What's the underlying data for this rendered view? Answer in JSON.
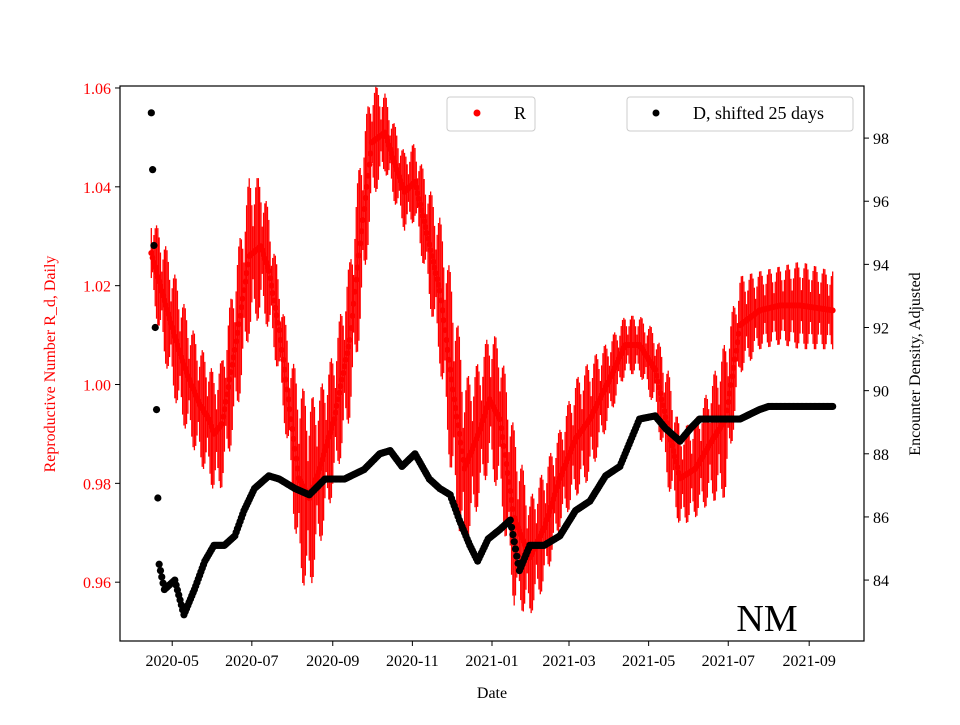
{
  "chart_data": {
    "type": "scatter",
    "title": "",
    "annotation": "NM",
    "xlabel": "Date",
    "ylabel_left": "Reproductive Number R_d, Daily",
    "ylabel_right": "Encounter Density, Adjusted",
    "xlim": [
      "2020-03-22",
      "2021-10-13"
    ],
    "ylim_left": [
      0.9481,
      1.0604
    ],
    "ylim_right": [
      82.07,
      99.65
    ],
    "x_ticks": [
      {
        "date": "2020-05-01",
        "label": "2020-05"
      },
      {
        "date": "2020-07-01",
        "label": "2020-07"
      },
      {
        "date": "2020-09-01",
        "label": "2020-09"
      },
      {
        "date": "2020-11-01",
        "label": "2020-11"
      },
      {
        "date": "2021-01-01",
        "label": "2021-01"
      },
      {
        "date": "2021-03-01",
        "label": "2021-03"
      },
      {
        "date": "2021-05-01",
        "label": "2021-05"
      },
      {
        "date": "2021-07-01",
        "label": "2021-07"
      },
      {
        "date": "2021-09-01",
        "label": "2021-09"
      }
    ],
    "y_ticks_left": [
      {
        "value": 0.96,
        "label": "0.96"
      },
      {
        "value": 0.98,
        "label": "0.98"
      },
      {
        "value": 1.0,
        "label": "1.00"
      },
      {
        "value": 1.02,
        "label": "1.02"
      },
      {
        "value": 1.04,
        "label": "1.04"
      },
      {
        "value": 1.06,
        "label": "1.06"
      }
    ],
    "y_ticks_right": [
      {
        "value": 84,
        "label": "84"
      },
      {
        "value": 86,
        "label": "86"
      },
      {
        "value": 88,
        "label": "88"
      },
      {
        "value": 90,
        "label": "90"
      },
      {
        "value": 92,
        "label": "92"
      },
      {
        "value": 94,
        "label": "94"
      },
      {
        "value": 96,
        "label": "96"
      },
      {
        "value": 98,
        "label": "98"
      }
    ],
    "legend": [
      {
        "label": "R",
        "color": "#ff0000",
        "placement": "top-center"
      },
      {
        "label": "D, shifted 25 days",
        "color": "#000000",
        "placement": "top-right"
      }
    ],
    "colors": {
      "R": "#ff0000",
      "D": "#000000"
    },
    "series": [
      {
        "name": "R",
        "axis": "left",
        "interpolation": "daily",
        "points": [
          [
            "2020-04-15",
            1.0266,
            0.008
          ],
          [
            "2020-04-25",
            1.017,
            0.012
          ],
          [
            "2020-05-06",
            1.007,
            0.013
          ],
          [
            "2020-05-14",
            1.001,
            0.012
          ],
          [
            "2020-05-22",
            0.996,
            0.012
          ],
          [
            "2020-05-29",
            0.993,
            0.012
          ],
          [
            "2020-06-02",
            0.99,
            0.012
          ],
          [
            "2020-06-08",
            0.992,
            0.013
          ],
          [
            "2020-06-18",
            1.007,
            0.016
          ],
          [
            "2020-06-29",
            1.026,
            0.016
          ],
          [
            "2020-07-08",
            1.028,
            0.014
          ],
          [
            "2020-07-14",
            1.023,
            0.012
          ],
          [
            "2020-07-22",
            1.011,
            0.01
          ],
          [
            "2020-07-30",
            0.995,
            0.012
          ],
          [
            "2020-08-06",
            0.981,
            0.02
          ],
          [
            "2020-08-14",
            0.977,
            0.02
          ],
          [
            "2020-08-22",
            0.983,
            0.016
          ],
          [
            "2020-09-02",
            0.993,
            0.014
          ],
          [
            "2020-09-14",
            1.009,
            0.016
          ],
          [
            "2020-09-23",
            1.031,
            0.018
          ],
          [
            "2020-10-01",
            1.049,
            0.012
          ],
          [
            "2020-10-11",
            1.051,
            0.008
          ],
          [
            "2020-10-18",
            1.045,
            0.008
          ],
          [
            "2020-10-26",
            1.039,
            0.008
          ],
          [
            "2020-11-03",
            1.041,
            0.008
          ],
          [
            "2020-11-10",
            1.033,
            0.01
          ],
          [
            "2020-11-22",
            1.019,
            0.015
          ],
          [
            "2020-12-03",
            0.997,
            0.022
          ],
          [
            "2020-12-11",
            0.983,
            0.018
          ],
          [
            "2020-12-23",
            0.991,
            0.014
          ],
          [
            "2020-12-30",
            0.997,
            0.014
          ],
          [
            "2021-01-07",
            0.993,
            0.016
          ],
          [
            "2021-01-18",
            0.973,
            0.018
          ],
          [
            "2021-01-30",
            0.965,
            0.012
          ],
          [
            "2021-02-10",
            0.971,
            0.012
          ],
          [
            "2021-02-22",
            0.981,
            0.01
          ],
          [
            "2021-03-06",
            0.989,
            0.012
          ],
          [
            "2021-03-17",
            0.993,
            0.012
          ],
          [
            "2021-04-01",
            1.001,
            0.008
          ],
          [
            "2021-04-13",
            1.008,
            0.006
          ],
          [
            "2021-04-24",
            1.008,
            0.006
          ],
          [
            "2021-05-06",
            1.003,
            0.008
          ],
          [
            "2021-05-16",
            0.991,
            0.012
          ],
          [
            "2021-05-25",
            0.981,
            0.01
          ],
          [
            "2021-06-06",
            0.983,
            0.01
          ],
          [
            "2021-06-17",
            0.988,
            0.012
          ],
          [
            "2021-06-29",
            0.993,
            0.016
          ],
          [
            "2021-07-10",
            1.012,
            0.01
          ],
          [
            "2021-07-25",
            1.015,
            0.008
          ],
          [
            "2021-08-10",
            1.016,
            0.008
          ],
          [
            "2021-08-25",
            1.016,
            0.009
          ],
          [
            "2021-09-19",
            1.015,
            0.008
          ]
        ]
      },
      {
        "name": "D, shifted 25 days",
        "axis": "right",
        "interpolation": "daily",
        "points": [
          [
            "2020-04-15",
            98.8
          ],
          [
            "2020-04-16",
            97.0
          ],
          [
            "2020-04-17",
            94.6
          ],
          [
            "2020-04-18",
            92.0
          ],
          [
            "2020-04-19",
            89.4
          ],
          [
            "2020-04-20",
            86.6
          ],
          [
            "2020-04-21",
            84.5
          ],
          [
            "2020-04-25",
            83.7
          ],
          [
            "2020-05-03",
            84.0
          ],
          [
            "2020-05-10",
            82.9
          ],
          [
            "2020-05-18",
            83.7
          ],
          [
            "2020-05-26",
            84.6
          ],
          [
            "2020-06-02",
            85.1
          ],
          [
            "2020-06-10",
            85.1
          ],
          [
            "2020-06-18",
            85.4
          ],
          [
            "2020-06-25",
            86.2
          ],
          [
            "2020-07-03",
            86.9
          ],
          [
            "2020-07-14",
            87.3
          ],
          [
            "2020-07-22",
            87.2
          ],
          [
            "2020-08-03",
            86.9
          ],
          [
            "2020-08-14",
            86.7
          ],
          [
            "2020-08-26",
            87.2
          ],
          [
            "2020-09-10",
            87.2
          ],
          [
            "2020-09-25",
            87.5
          ],
          [
            "2020-10-07",
            88.0
          ],
          [
            "2020-10-15",
            88.1
          ],
          [
            "2020-10-24",
            87.6
          ],
          [
            "2020-11-03",
            88.0
          ],
          [
            "2020-11-14",
            87.2
          ],
          [
            "2020-11-22",
            86.9
          ],
          [
            "2020-11-30",
            86.7
          ],
          [
            "2020-12-07",
            85.9
          ],
          [
            "2020-12-15",
            85.1
          ],
          [
            "2020-12-21",
            84.6
          ],
          [
            "2020-12-29",
            85.3
          ],
          [
            "2021-01-07",
            85.6
          ],
          [
            "2021-01-15",
            85.9
          ],
          [
            "2021-01-22",
            84.3
          ],
          [
            "2021-01-30",
            85.1
          ],
          [
            "2021-02-10",
            85.1
          ],
          [
            "2021-02-22",
            85.4
          ],
          [
            "2021-03-06",
            86.2
          ],
          [
            "2021-03-17",
            86.5
          ],
          [
            "2021-03-29",
            87.3
          ],
          [
            "2021-04-09",
            87.6
          ],
          [
            "2021-04-24",
            89.1
          ],
          [
            "2021-05-06",
            89.2
          ],
          [
            "2021-05-14",
            88.8
          ],
          [
            "2021-05-25",
            88.4
          ],
          [
            "2021-06-02",
            88.8
          ],
          [
            "2021-06-09",
            89.1
          ],
          [
            "2021-06-25",
            89.1
          ],
          [
            "2021-07-10",
            89.1
          ],
          [
            "2021-07-25",
            89.4
          ],
          [
            "2021-08-01",
            89.5
          ],
          [
            "2021-09-19",
            89.5
          ]
        ]
      }
    ]
  }
}
